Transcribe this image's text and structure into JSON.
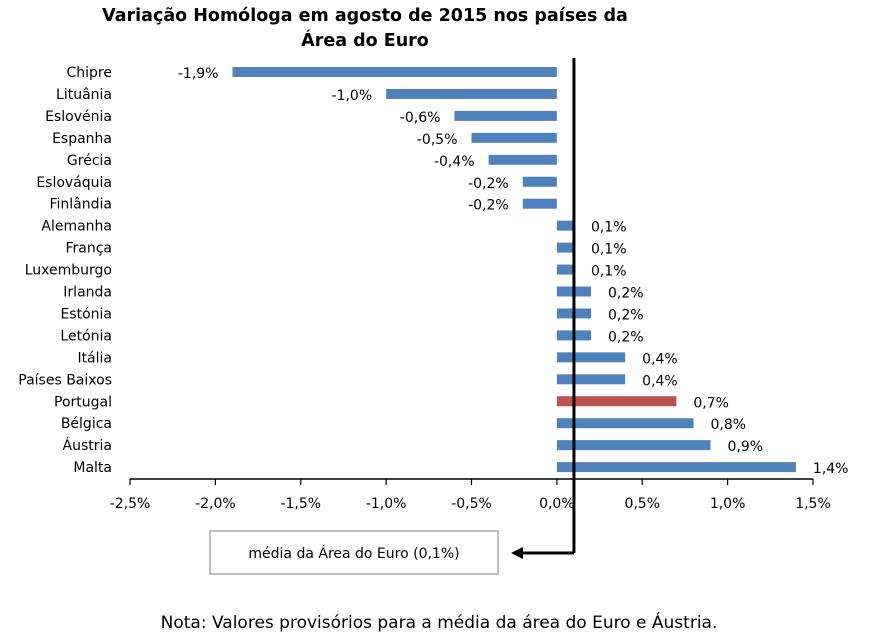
{
  "chart_data": {
    "type": "bar",
    "orientation": "horizontal",
    "title_lines": [
      "Variação Homóloga em agosto de 2015 nos países da",
      "Área do Euro"
    ],
    "categories": [
      "Chipre",
      "Lituânia",
      "Eslovénia",
      "Espanha",
      "Grécia",
      "Eslováquia",
      "Finlândia",
      "Alemanha",
      "França",
      "Luxemburgo",
      "Irlanda",
      "Estónia",
      "Letónia",
      "Itália",
      "Países Baixos",
      "Portugal",
      "Bélgica",
      "Áustria",
      "Malta"
    ],
    "values": [
      -1.9,
      -1.0,
      -0.6,
      -0.5,
      -0.4,
      -0.2,
      -0.2,
      0.1,
      0.1,
      0.1,
      0.2,
      0.2,
      0.2,
      0.4,
      0.4,
      0.7,
      0.8,
      0.9,
      1.4
    ],
    "value_labels": [
      "-1,9%",
      "-1,0%",
      "-0,6%",
      "-0,5%",
      "-0,4%",
      "-0,2%",
      "-0,2%",
      "0,1%",
      "0,1%",
      "0,1%",
      "0,2%",
      "0,2%",
      "0,2%",
      "0,4%",
      "0,4%",
      "0,7%",
      "0,8%",
      "0,9%",
      "1,4%"
    ],
    "highlight_category": "Portugal",
    "bar_color": "#4f81bd",
    "highlight_color": "#c0504d",
    "xlim": [
      -2.5,
      1.5
    ],
    "xticks": [
      -2.5,
      -2.0,
      -1.5,
      -1.0,
      -0.5,
      0.0,
      0.5,
      1.0,
      1.5
    ],
    "xtick_labels": [
      "-2,5%",
      "-2,0%",
      "-1,5%",
      "-1,0%",
      "-0,5%",
      "0,0%",
      "0,5%",
      "1,0%",
      "1,5%"
    ],
    "reference_line": {
      "value": 0.1,
      "label": "média da Área do Euro (0,1%)"
    },
    "grid": false
  },
  "note": "Nota: Valores provisórios para a média da área do Euro e Áustria."
}
